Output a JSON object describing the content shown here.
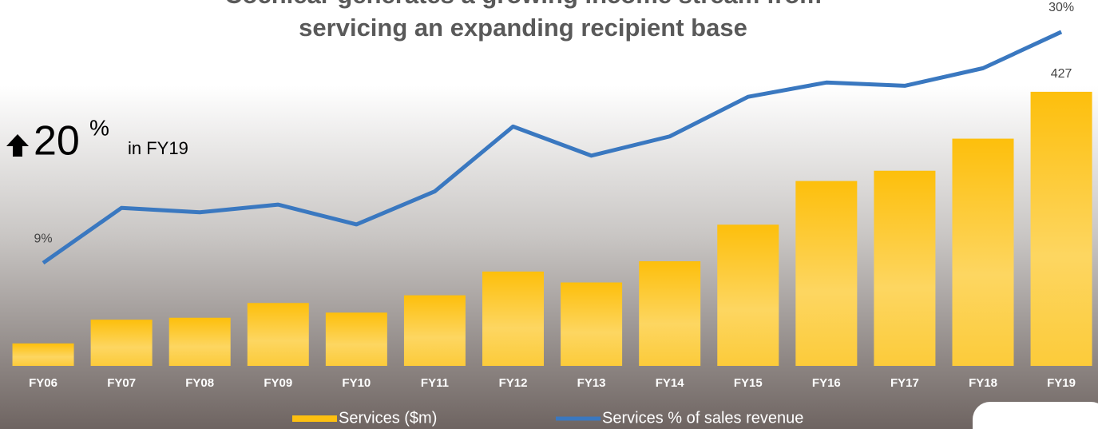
{
  "chart_data": {
    "type": "bar-line",
    "title": [
      "Cochlear generates a growing income stream from",
      "servicing an expanding recipient base"
    ],
    "categories": [
      "FY06",
      "FY07",
      "FY08",
      "FY09",
      "FY10",
      "FY11",
      "FY12",
      "FY13",
      "FY14",
      "FY15",
      "FY16",
      "FY17",
      "FY18",
      "FY19"
    ],
    "series": [
      {
        "name": "Services ($m)",
        "type": "bar",
        "color": "#fdc010",
        "values": [
          35,
          72,
          75,
          98,
          83,
          110,
          147,
          130,
          163,
          220,
          288,
          304,
          354,
          427
        ]
      },
      {
        "name": "Services % of sales revenue",
        "type": "line",
        "axis": "y2",
        "color": "#3a78c0",
        "values": [
          9,
          14.0,
          13.6,
          14.3,
          12.5,
          15.5,
          21.4,
          18.75,
          20.5,
          24.1,
          25.4,
          25.1,
          26.7,
          30
        ],
        "value_labels": [
          "9%",
          null,
          null,
          null,
          null,
          null,
          null,
          null,
          null,
          null,
          null,
          null,
          null,
          "30%"
        ]
      }
    ],
    "ylim": [
      0,
      570
    ],
    "y2lim": [
      -0.36,
      32.9
    ],
    "annotation": {
      "change": 20,
      "unit": "%",
      "period": "in FY19"
    },
    "legend": "bottom"
  }
}
